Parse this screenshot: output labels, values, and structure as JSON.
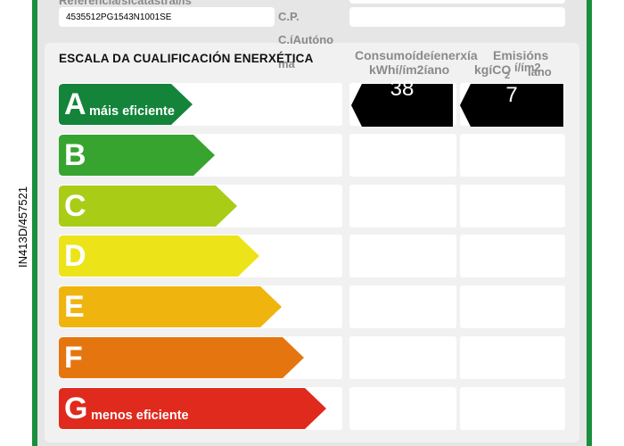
{
  "side_code": "IN413D/457521",
  "header": {
    "referencia_label": "Referencia/sicatastral/is",
    "referencia_value": "4535512PG1543N1001SE",
    "cp_label": "C.P.",
    "ca_label_line1": "C.íAutóno",
    "ca_label_line2": "ma"
  },
  "scale": {
    "title": "ESCALA DA CUALIFICACIÓN ENERXÉTICA",
    "consumo_head_line1": "Consumoídeíenerxía",
    "consumo_head_line2": "kWhí/ím2íano",
    "emisions_head_line1": "Emisións",
    "emisions_head_line2a": "kgíCO",
    "emisions_head_line2b": "í/ím2",
    "emisions_head_line2c": "2",
    "emisions_head_line2d": "íano",
    "bars": [
      {
        "letter": "A",
        "sub": "máis eficiente",
        "color": "#13843a"
      },
      {
        "letter": "B",
        "sub": "",
        "color": "#37a42f"
      },
      {
        "letter": "C",
        "sub": "",
        "color": "#a9cc16"
      },
      {
        "letter": "D",
        "sub": "",
        "color": "#ece418"
      },
      {
        "letter": "E",
        "sub": "",
        "color": "#f0b40f"
      },
      {
        "letter": "F",
        "sub": "",
        "color": "#e5760f"
      },
      {
        "letter": "G",
        "sub": "menos eficiente",
        "color": "#df2a1d"
      }
    ],
    "consumo_value": "38",
    "emisions_value": "7"
  }
}
